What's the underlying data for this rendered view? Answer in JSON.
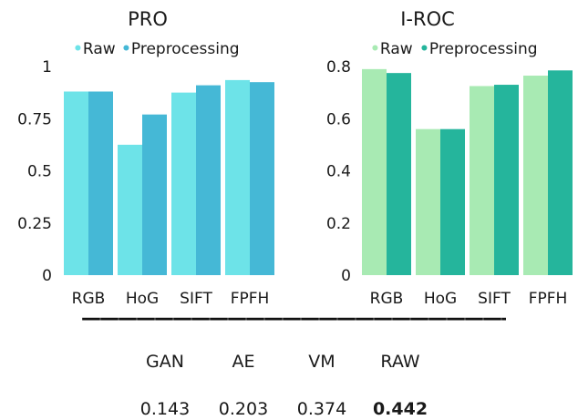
{
  "chart_data": [
    {
      "type": "bar",
      "title": "PRO",
      "categories": [
        "RGB",
        "HoG",
        "SIFT",
        "FPFH"
      ],
      "series": [
        {
          "name": "Raw",
          "values": [
            0.88,
            0.625,
            0.875,
            0.935
          ]
        },
        {
          "name": "Preprocessing",
          "values": [
            0.88,
            0.77,
            0.91,
            0.925
          ]
        }
      ],
      "yticks": [
        "0",
        "0.25",
        "0.5",
        "0.75",
        "1"
      ],
      "ylim": [
        0,
        1
      ],
      "legend": "top",
      "grid": false,
      "colors": [
        "#6de3e8",
        "#45b8d6"
      ]
    },
    {
      "type": "bar",
      "title": "I-ROC",
      "categories": [
        "RGB",
        "HoG",
        "SIFT",
        "FPFH"
      ],
      "series": [
        {
          "name": "Raw",
          "values": [
            0.79,
            0.56,
            0.725,
            0.765
          ]
        },
        {
          "name": "Preprocessing",
          "values": [
            0.775,
            0.56,
            0.73,
            0.785
          ]
        }
      ],
      "yticks": [
        "0",
        "0.2",
        "0.4",
        "0.6",
        "0.8"
      ],
      "ylim": [
        0,
        0.8
      ],
      "legend": "top",
      "grid": false,
      "colors": [
        "#a8eab3",
        "#25b59c"
      ]
    }
  ],
  "divider": "———————————————————————————",
  "table": {
    "headers": [
      "GAN",
      "AE",
      "VM",
      "RAW"
    ],
    "values": [
      "0.143",
      "0.203",
      "0.374",
      "0.442"
    ]
  }
}
